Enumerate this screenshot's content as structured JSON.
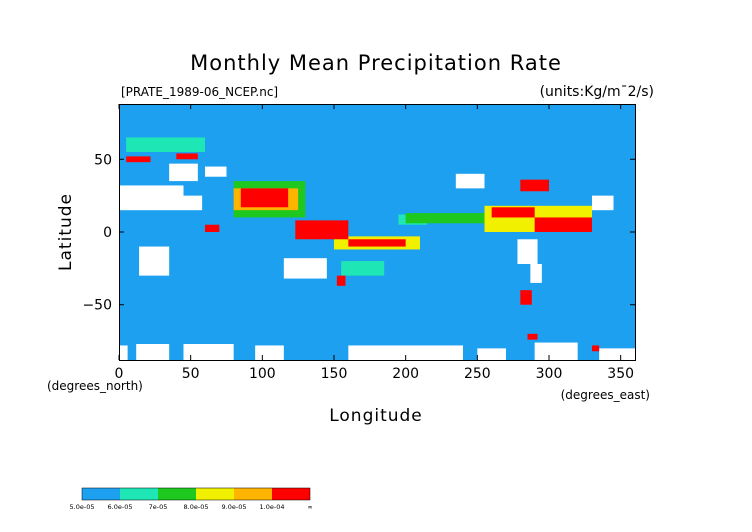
{
  "chart_data": {
    "type": "heatmap",
    "title": "Monthly Mean Precipitation Rate",
    "file_label": "[PRATE_1989-06_NCEP.nc]",
    "units_label": "(units:Kg/m¯2/s)",
    "xlabel": "Longitude",
    "ylabel": "Latitude",
    "x_unit_label": "(degrees_east)",
    "y_unit_label": "(degrees_north)",
    "xlim": [
      0,
      360
    ],
    "ylim": [
      -88,
      88
    ],
    "x_ticks": [
      0,
      50,
      100,
      150,
      200,
      250,
      300,
      350
    ],
    "y_ticks": [
      50,
      0,
      -50
    ],
    "x_tick_labels": [
      "0",
      "50",
      "100",
      "150",
      "200",
      "250",
      "300",
      "350"
    ],
    "y_tick_labels": [
      "50",
      "0",
      "−50"
    ],
    "grid": false,
    "colorbar": {
      "labels": [
        "5.0e-05",
        "6.0e-05",
        "7e-05",
        "8.0e-05",
        "9.0e-05",
        "1.0e-04",
        "∞"
      ],
      "colors": [
        "#1ea0f0",
        "#1ee6b4",
        "#1ec81e",
        "#f0f000",
        "#ffb400",
        "#ff0000"
      ]
    },
    "colors": {
      "background_field": "#1ea0f0",
      "missing": "#ffffff",
      "level2": "#1ee6b4",
      "level3": "#1ec81e",
      "level4": "#f0f000",
      "level5": "#ffb400",
      "level6": "#ff0000"
    },
    "regions": [
      {
        "level": "missing",
        "lon": [
          0,
          6
        ],
        "lat": [
          -88,
          -78
        ]
      },
      {
        "level": "missing",
        "lon": [
          12,
          35
        ],
        "lat": [
          -88,
          -77
        ]
      },
      {
        "level": "missing",
        "lon": [
          45,
          80
        ],
        "lat": [
          -88,
          -77
        ]
      },
      {
        "level": "missing",
        "lon": [
          95,
          115
        ],
        "lat": [
          -88,
          -78
        ]
      },
      {
        "level": "missing",
        "lon": [
          160,
          240
        ],
        "lat": [
          -88,
          -78
        ]
      },
      {
        "level": "missing",
        "lon": [
          250,
          270
        ],
        "lat": [
          -88,
          -80
        ]
      },
      {
        "level": "missing",
        "lon": [
          290,
          320
        ],
        "lat": [
          -88,
          -76
        ]
      },
      {
        "level": "missing",
        "lon": [
          335,
          360
        ],
        "lat": [
          -88,
          -80
        ]
      },
      {
        "level": "missing",
        "lon": [
          0,
          45
        ],
        "lat": [
          15,
          32
        ]
      },
      {
        "level": "missing",
        "lon": [
          45,
          58
        ],
        "lat": [
          15,
          25
        ]
      },
      {
        "level": "missing",
        "lon": [
          35,
          55
        ],
        "lat": [
          35,
          47
        ]
      },
      {
        "level": "missing",
        "lon": [
          60,
          75
        ],
        "lat": [
          38,
          45
        ]
      },
      {
        "level": "missing",
        "lon": [
          14,
          35
        ],
        "lat": [
          -30,
          -10
        ]
      },
      {
        "level": "missing",
        "lon": [
          115,
          145
        ],
        "lat": [
          -32,
          -18
        ]
      },
      {
        "level": "missing",
        "lon": [
          235,
          255
        ],
        "lat": [
          30,
          40
        ]
      },
      {
        "level": "missing",
        "lon": [
          278,
          292
        ],
        "lat": [
          -22,
          -5
        ]
      },
      {
        "level": "missing",
        "lon": [
          287,
          295
        ],
        "lat": [
          -35,
          -22
        ]
      },
      {
        "level": "missing",
        "lon": [
          330,
          345
        ],
        "lat": [
          15,
          25
        ]
      },
      {
        "level": "level2",
        "lon": [
          5,
          60
        ],
        "lat": [
          55,
          65
        ]
      },
      {
        "level": "level2",
        "lon": [
          195,
          215
        ],
        "lat": [
          5,
          12
        ]
      },
      {
        "level": "level2",
        "lon": [
          155,
          185
        ],
        "lat": [
          -30,
          -20
        ]
      },
      {
        "level": "level3",
        "lon": [
          80,
          130
        ],
        "lat": [
          10,
          35
        ]
      },
      {
        "level": "level3",
        "lon": [
          200,
          260
        ],
        "lat": [
          6,
          13
        ]
      },
      {
        "level": "level4",
        "lon": [
          150,
          210
        ],
        "lat": [
          -12,
          -3
        ]
      },
      {
        "level": "level4",
        "lon": [
          255,
          330
        ],
        "lat": [
          0,
          18
        ]
      },
      {
        "level": "level5",
        "lon": [
          80,
          125
        ],
        "lat": [
          15,
          30
        ]
      },
      {
        "level": "level6",
        "lon": [
          85,
          118
        ],
        "lat": [
          17,
          30
        ]
      },
      {
        "level": "level6",
        "lon": [
          60,
          70
        ],
        "lat": [
          0,
          5
        ]
      },
      {
        "level": "level6",
        "lon": [
          123,
          160
        ],
        "lat": [
          -5,
          8
        ]
      },
      {
        "level": "level6",
        "lon": [
          160,
          200
        ],
        "lat": [
          -10,
          -5
        ]
      },
      {
        "level": "level6",
        "lon": [
          260,
          290
        ],
        "lat": [
          10,
          17
        ]
      },
      {
        "level": "level6",
        "lon": [
          290,
          330
        ],
        "lat": [
          0,
          10
        ]
      },
      {
        "level": "level6",
        "lon": [
          280,
          300
        ],
        "lat": [
          28,
          36
        ]
      },
      {
        "level": "level6",
        "lon": [
          5,
          22
        ],
        "lat": [
          48,
          52
        ]
      },
      {
        "level": "level6",
        "lon": [
          40,
          55
        ],
        "lat": [
          50,
          54
        ]
      },
      {
        "level": "level6",
        "lon": [
          280,
          288
        ],
        "lat": [
          -50,
          -40
        ]
      },
      {
        "level": "level6",
        "lon": [
          152,
          158
        ],
        "lat": [
          -37,
          -30
        ]
      },
      {
        "level": "level6",
        "lon": [
          285,
          292
        ],
        "lat": [
          -74,
          -70
        ]
      },
      {
        "level": "level6",
        "lon": [
          330,
          335
        ],
        "lat": [
          -82,
          -78
        ]
      }
    ]
  }
}
